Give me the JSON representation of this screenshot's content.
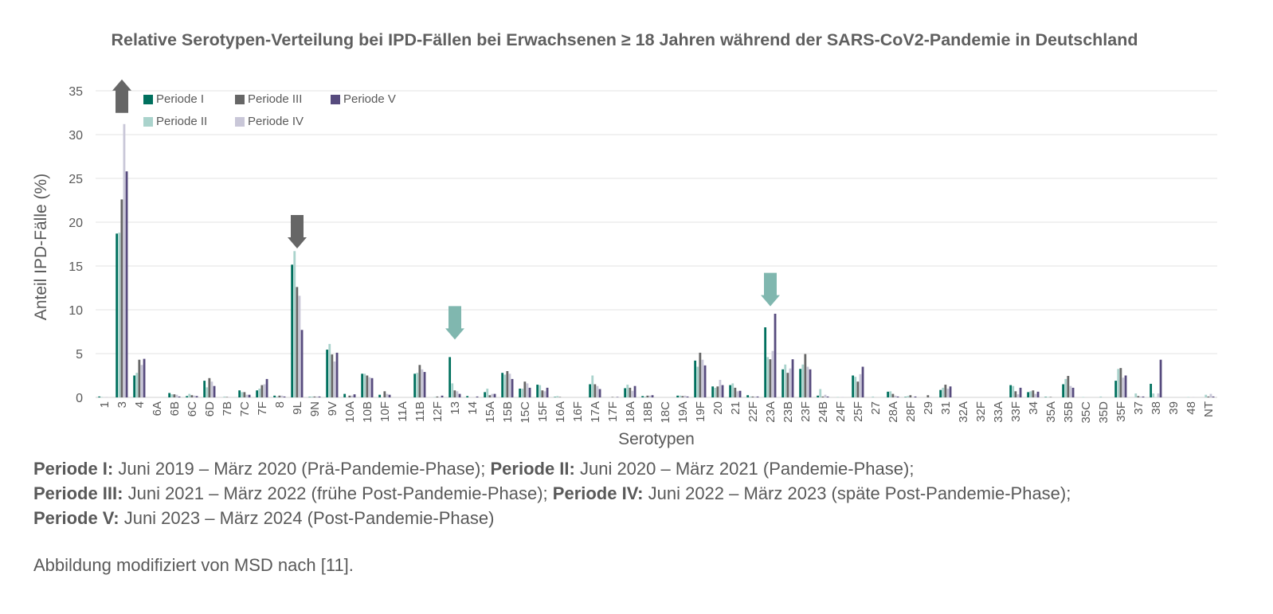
{
  "title": "Relative Serotypen-Verteilung bei IPD-Fällen bei Erwachsenen ≥ 18 Jahren  während der SARS-CoV2-Pandemie in Deutschland",
  "chart_data": {
    "type": "bar",
    "title": "Relative Serotypen-Verteilung bei IPD-Fällen bei Erwachsenen ≥ 18 Jahren  während der SARS-CoV2-Pandemie in Deutschland",
    "xlabel": "Serotypen",
    "ylabel": "Anteil IPD-Fälle (%)",
    "ylim": [
      0,
      35
    ],
    "yticks": [
      0,
      5,
      10,
      15,
      20,
      25,
      30,
      35
    ],
    "grid": true,
    "legend_placement": "top-left",
    "categories": [
      "1",
      "3",
      "4",
      "6A",
      "6B",
      "6C",
      "6D",
      "7B",
      "7C",
      "7F",
      "8",
      "9L",
      "9N",
      "9V",
      "10A",
      "10B",
      "10F",
      "11A",
      "11B",
      "12F",
      "13",
      "14",
      "15A",
      "15B",
      "15C",
      "15F",
      "16A",
      "16F",
      "17A",
      "17F",
      "18A",
      "18B",
      "18C",
      "19A",
      "19F",
      "20",
      "21",
      "22F",
      "23A",
      "23B",
      "23F",
      "24B",
      "24F",
      "25F",
      "27",
      "28A",
      "28F",
      "29",
      "31",
      "32A",
      "32F",
      "33A",
      "33F",
      "34",
      "35A",
      "35B",
      "35C",
      "35D",
      "35F",
      "37",
      "38",
      "39",
      "48",
      "NT"
    ],
    "series": [
      {
        "name": "Periode I",
        "color": "#00705e",
        "values": [
          0.1,
          18.7,
          2.5,
          0,
          0.5,
          0.15,
          1.9,
          0,
          0.8,
          0.8,
          0.2,
          15.15,
          0.05,
          5.45,
          0.4,
          2.7,
          0.3,
          0,
          2.7,
          0,
          4.6,
          0.15,
          0.6,
          2.8,
          1.0,
          1.45,
          0.05,
          0,
          1.5,
          0,
          1.05,
          0.15,
          0,
          0.2,
          4.2,
          1.25,
          1.4,
          0.25,
          8.0,
          3.2,
          3.25,
          0.2,
          0,
          2.5,
          0,
          0.65,
          0.05,
          0,
          0.85,
          0,
          0,
          0,
          1.4,
          0.6,
          0.05,
          1.5,
          0,
          0,
          1.9,
          0,
          1.55,
          0,
          0,
          0
        ]
      },
      {
        "name": "Periode II",
        "color": "#aad3cc",
        "values": [
          0.05,
          18.8,
          2.8,
          0,
          0.35,
          0.4,
          1.15,
          0.1,
          0.6,
          1.0,
          0.1,
          16.7,
          0.1,
          6.1,
          0,
          2.7,
          0,
          0,
          2.8,
          0.05,
          1.6,
          0,
          1.0,
          2.6,
          1.0,
          1.4,
          0.15,
          0,
          2.5,
          0,
          1.45,
          0.1,
          0,
          0.2,
          3.5,
          1.1,
          1.6,
          0.1,
          4.6,
          3.75,
          3.75,
          0.95,
          0.05,
          2.35,
          0.1,
          0.7,
          0.15,
          0,
          1.1,
          0,
          0,
          0,
          1.3,
          0.7,
          0.05,
          2.1,
          0.05,
          0.1,
          3.25,
          0.45,
          0.45,
          0,
          0.05,
          0.3
        ]
      },
      {
        "name": "Periode III",
        "color": "#666666",
        "values": [
          0,
          22.6,
          4.3,
          0,
          0.35,
          0.25,
          2.2,
          0.05,
          0.6,
          1.4,
          0.2,
          12.6,
          0.1,
          4.9,
          0.2,
          2.5,
          0.7,
          0,
          3.7,
          0.1,
          0.8,
          0,
          0.25,
          3.0,
          1.8,
          0.8,
          0.05,
          0,
          1.5,
          0.05,
          1.1,
          0.2,
          0,
          0.15,
          5.1,
          1.25,
          1.1,
          0.1,
          4.35,
          2.8,
          4.95,
          0.1,
          0,
          1.8,
          0,
          0.4,
          0.25,
          0.25,
          1.45,
          0,
          0,
          0,
          0.7,
          0.8,
          0.05,
          2.45,
          0,
          0,
          3.35,
          0.15,
          0,
          0,
          0,
          0.1
        ]
      },
      {
        "name": "Periode IV",
        "color": "#c9c7d8",
        "values": [
          0.05,
          31.2,
          3.7,
          0,
          0.3,
          0.2,
          1.8,
          0.05,
          0.3,
          1.5,
          0.2,
          11.6,
          0.1,
          4.1,
          0.2,
          2.3,
          0.4,
          0,
          3.2,
          0.05,
          0.7,
          0,
          0.4,
          2.7,
          1.6,
          0.7,
          0,
          0,
          1.3,
          0,
          0.75,
          0.2,
          0,
          0.2,
          4.3,
          2.0,
          0.7,
          0.1,
          5.3,
          3.3,
          3.5,
          0.3,
          0.05,
          2.65,
          0,
          0.2,
          0.05,
          0.05,
          1.0,
          0,
          0,
          0,
          0.35,
          0.4,
          0,
          1.3,
          0,
          0,
          2.25,
          0.1,
          0.45,
          0,
          0.05,
          0.4
        ]
      },
      {
        "name": "Periode V",
        "color": "#574b7e",
        "values": [
          0,
          25.8,
          4.4,
          0,
          0.1,
          0.15,
          1.3,
          0,
          0.3,
          2.1,
          0.1,
          7.7,
          0.1,
          5.1,
          0.35,
          2.2,
          0.3,
          0,
          2.9,
          0.2,
          0.4,
          0.1,
          0.4,
          2.1,
          1.1,
          1.1,
          0,
          0,
          0.95,
          0.05,
          1.3,
          0.25,
          0,
          0.1,
          3.65,
          1.4,
          0.75,
          0.1,
          9.55,
          4.35,
          3.2,
          0.1,
          0,
          3.5,
          0,
          0.1,
          0.1,
          0,
          1.25,
          0,
          0,
          0,
          1.1,
          0.65,
          0,
          1.1,
          0,
          0,
          2.5,
          0.1,
          4.3,
          0,
          0,
          0.1
        ]
      }
    ],
    "annotations": [
      {
        "type": "arrow",
        "category": "3",
        "direction": "up",
        "tip": 36.3,
        "color": "#666666"
      },
      {
        "type": "arrow",
        "category": "9L",
        "direction": "down",
        "tip": 17.0,
        "color": "#666666"
      },
      {
        "type": "arrow",
        "category": "13",
        "direction": "down",
        "tip": 6.6,
        "color": "#80b7af"
      },
      {
        "type": "arrow",
        "category": "23A",
        "direction": "down",
        "tip": 10.4,
        "color": "#80b7af"
      }
    ]
  },
  "footnotes": [
    [
      {
        "b": "Periode I:"
      },
      {
        "t": " Juni 2019 – März 2020 (Prä-Pandemie-Phase); "
      },
      {
        "b": "Periode II:"
      },
      {
        "t": " Juni 2020 – März 2021 (Pandemie-Phase);"
      }
    ],
    [
      {
        "b": "Periode III:"
      },
      {
        "t": " Juni 2021 – März 2022 (frühe Post-Pandemie-Phase); "
      },
      {
        "b": "Periode IV:"
      },
      {
        "t": " Juni 2022 – März 2023 (späte Post-Pandemie-Phase);"
      }
    ],
    [
      {
        "b": "Periode V:"
      },
      {
        "t": " Juni 2023 – März 2024 (Post-Pandemie-Phase)"
      }
    ]
  ],
  "source_note": "Abbildung modifiziert von MSD nach [11]."
}
